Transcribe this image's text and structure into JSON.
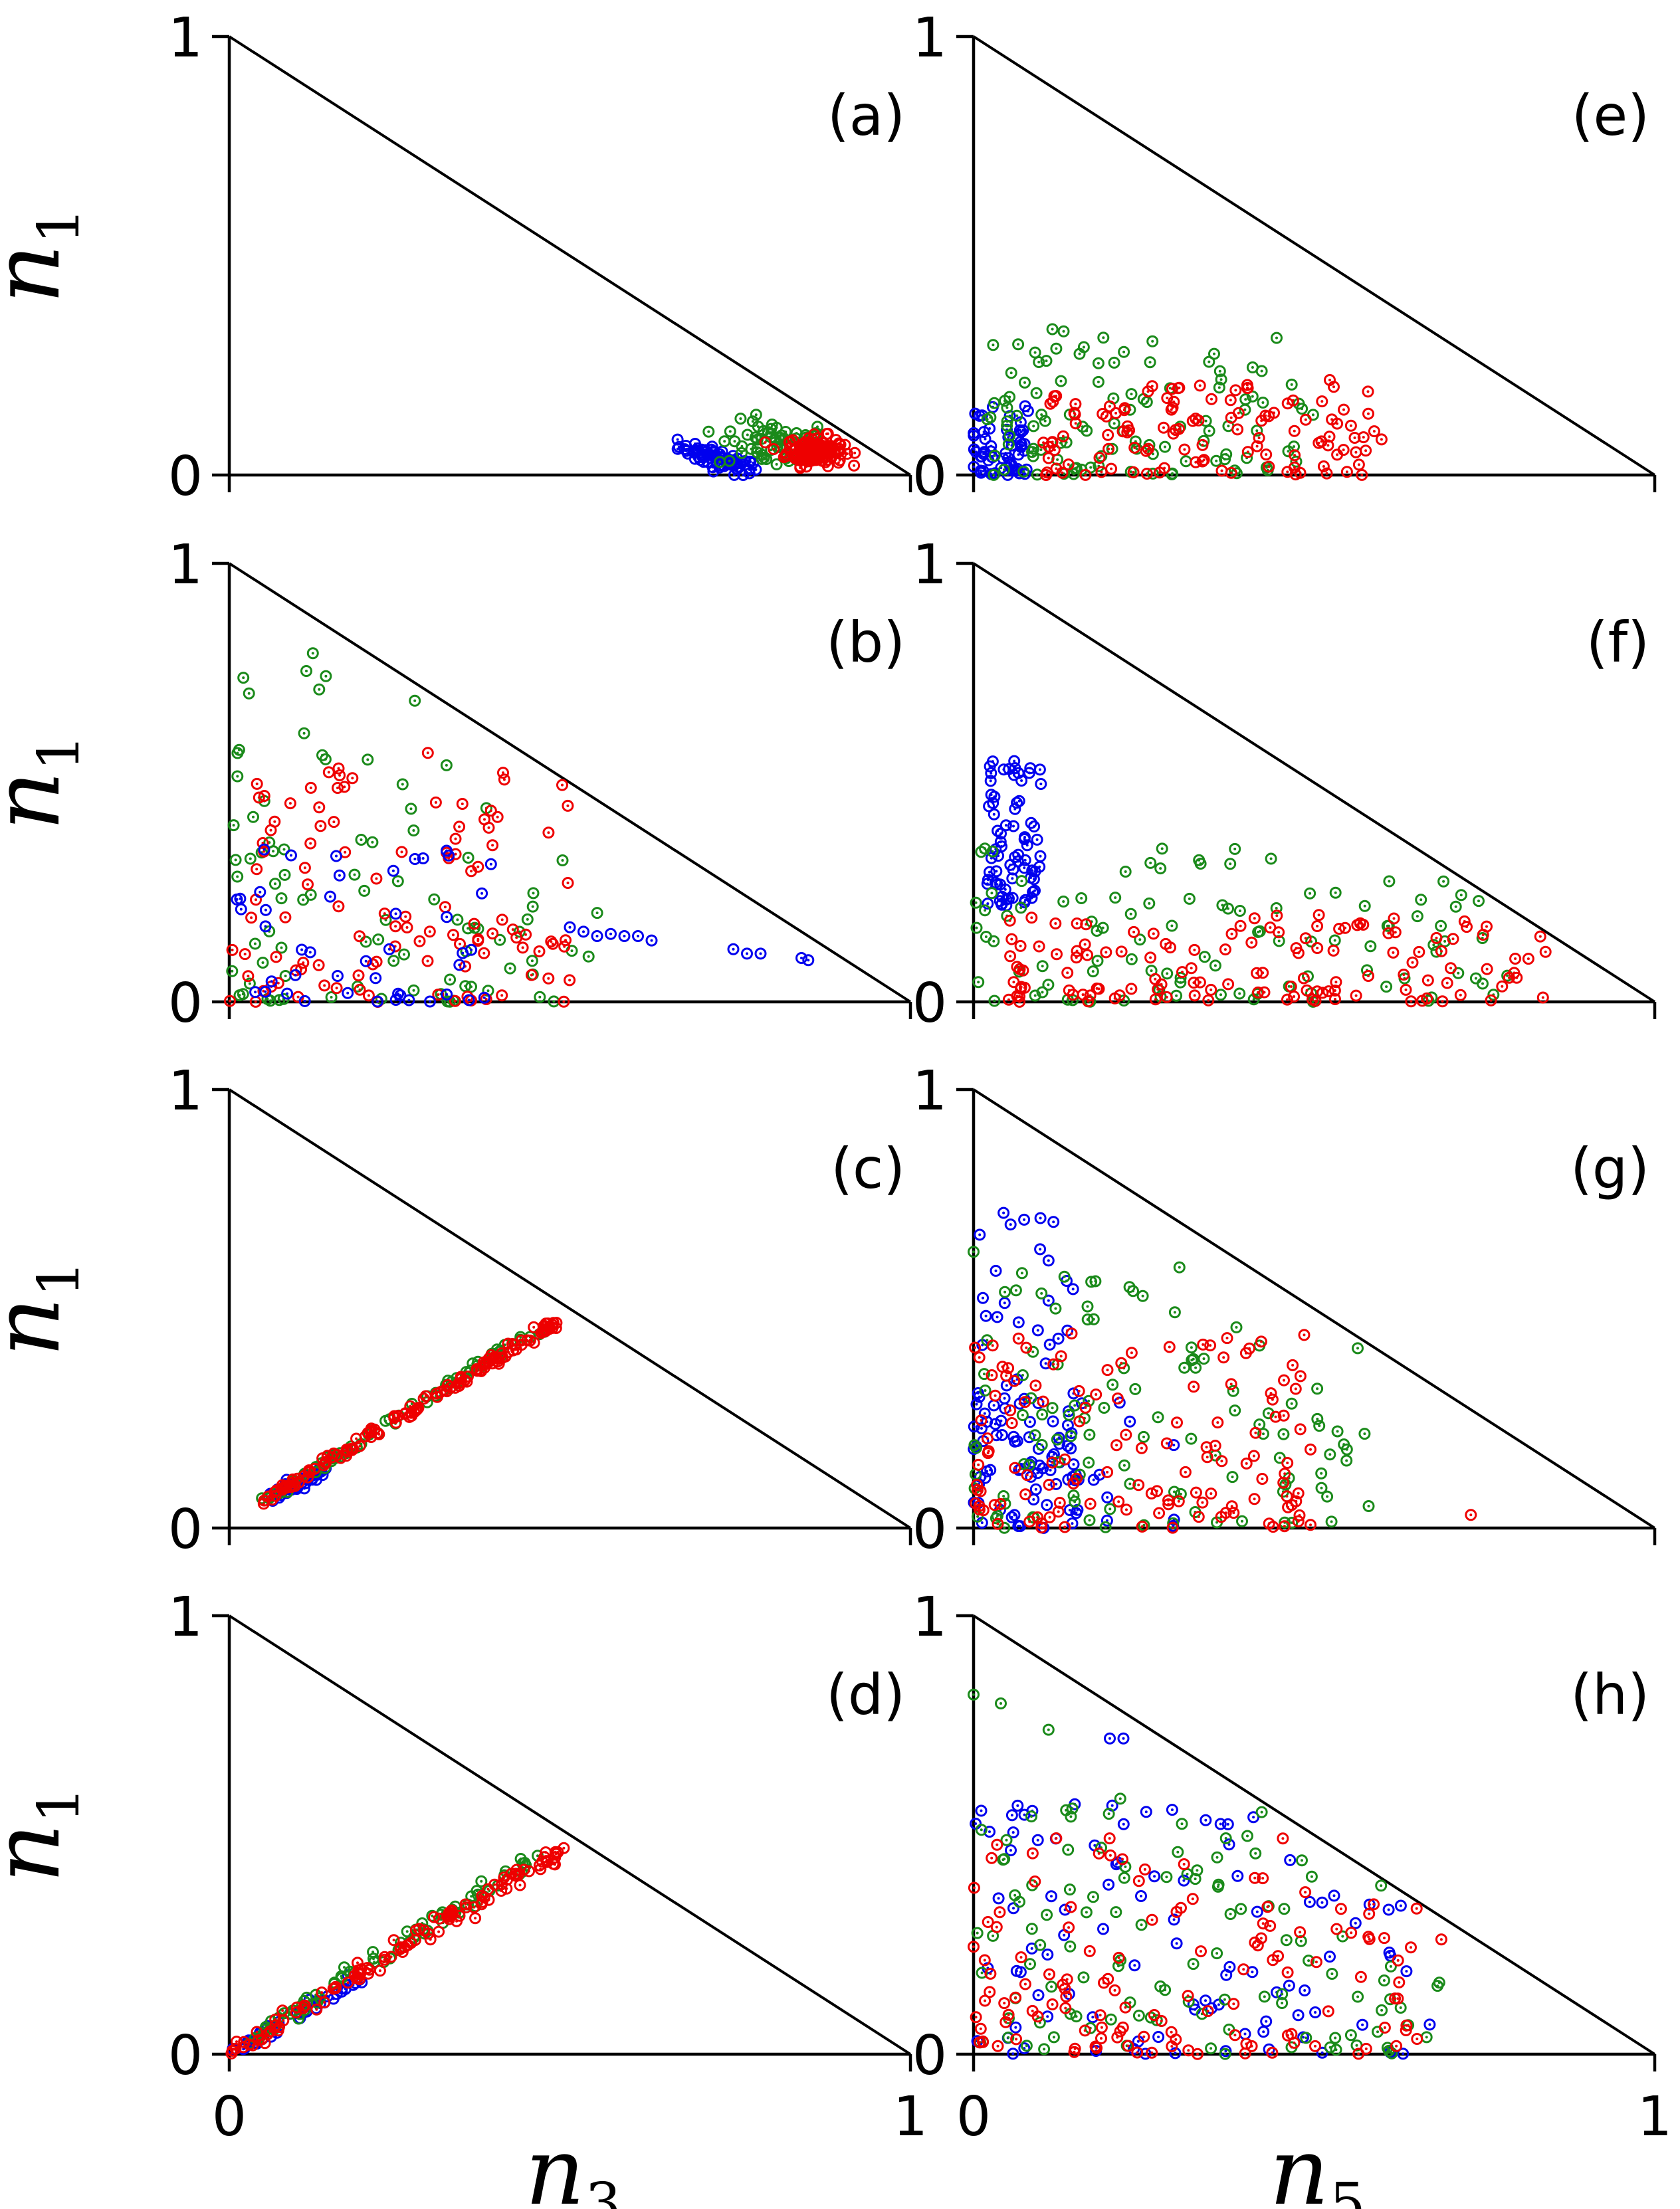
{
  "chart_data": {
    "type": "scatter",
    "description_series_colors": {
      "blue": "#0000ee",
      "green": "#1a8a1a",
      "red": "#ee0000"
    },
    "y_label": {
      "base": "n",
      "sub": "1"
    },
    "x_labels": [
      {
        "base": "n",
        "sub": "3"
      },
      {
        "base": "n",
        "sub": "5"
      }
    ],
    "x_ticks": [
      "0",
      "1"
    ],
    "y_ticks": [
      "0",
      "1"
    ],
    "xlim": [
      0,
      1
    ],
    "ylim": [
      0,
      1
    ],
    "panels": [
      {
        "label": "(a)",
        "column": 0,
        "row": 0,
        "style": "dense_cluster",
        "clusters": [
          {
            "color": "#0000ee",
            "center": [
              0.72,
              0.035
            ],
            "spread": [
              0.05,
              0.02
            ],
            "count": 70,
            "trend": [
              -0.5,
              0
            ]
          },
          {
            "color": "#1a8a1a",
            "center": [
              0.8,
              0.07
            ],
            "spread": [
              0.07,
              0.045
            ],
            "count": 70
          },
          {
            "color": "#ee0000",
            "center": [
              0.86,
              0.055
            ],
            "spread": [
              0.035,
              0.028
            ],
            "count": 140
          }
        ]
      },
      {
        "label": "(b)",
        "column": 0,
        "row": 1,
        "style": "scatter",
        "clusters": [
          {
            "color": "#1a8a1a",
            "region": [
              0.0,
              0.55,
              0.0,
              0.8
            ],
            "count": 90
          },
          {
            "color": "#ee0000",
            "region": [
              0.0,
              0.5,
              0.0,
              0.6
            ],
            "count": 110
          },
          {
            "color": "#0000ee",
            "region": [
              0.0,
              0.4,
              0.0,
              0.35
            ],
            "count": 45
          },
          {
            "color": "#0000ee",
            "points": [
              [
                0.5,
                0.17
              ],
              [
                0.52,
                0.16
              ],
              [
                0.54,
                0.15
              ],
              [
                0.56,
                0.155
              ],
              [
                0.58,
                0.15
              ],
              [
                0.6,
                0.15
              ],
              [
                0.62,
                0.14
              ],
              [
                0.74,
                0.12
              ],
              [
                0.76,
                0.11
              ],
              [
                0.78,
                0.11
              ],
              [
                0.84,
                0.1
              ],
              [
                0.85,
                0.095
              ]
            ]
          }
        ]
      },
      {
        "label": "(c)",
        "column": 0,
        "row": 2,
        "style": "line",
        "clusters": [
          {
            "color": "#0000ee",
            "from": [
              0.06,
              0.07
            ],
            "to": [
              0.14,
              0.13
            ],
            "count": 50,
            "jitter": 0.006
          },
          {
            "color": "#1a8a1a",
            "from": [
              0.05,
              0.06
            ],
            "to": [
              0.46,
              0.46
            ],
            "count": 70,
            "jitter": 0.005
          },
          {
            "color": "#ee0000",
            "from": [
              0.05,
              0.06
            ],
            "to": [
              0.48,
              0.47
            ],
            "count": 140,
            "jitter": 0.005
          }
        ]
      },
      {
        "label": "(d)",
        "column": 0,
        "row": 3,
        "style": "line",
        "clusters": [
          {
            "color": "#0000ee",
            "from": [
              0.0,
              0.0
            ],
            "to": [
              0.2,
              0.18
            ],
            "count": 45,
            "jitter": 0.007
          },
          {
            "color": "#1a8a1a",
            "from": [
              0.02,
              0.02
            ],
            "to": [
              0.45,
              0.45
            ],
            "count": 75,
            "jitter": 0.008
          },
          {
            "color": "#ee0000",
            "from": [
              0.0,
              0.0
            ],
            "to": [
              0.5,
              0.48
            ],
            "count": 120,
            "jitter": 0.008
          }
        ]
      },
      {
        "label": "(e)",
        "column": 1,
        "row": 0,
        "style": "scatter",
        "clusters": [
          {
            "color": "#0000ee",
            "region": [
              0.0,
              0.08,
              0.0,
              0.16
            ],
            "count": 60
          },
          {
            "color": "#1a8a1a",
            "region": [
              0.02,
              0.5,
              0.0,
              0.34
            ],
            "count": 110
          },
          {
            "color": "#ee0000",
            "region": [
              0.1,
              0.6,
              0.0,
              0.22
            ],
            "count": 120
          }
        ]
      },
      {
        "label": "(f)",
        "column": 1,
        "row": 1,
        "style": "scatter",
        "clusters": [
          {
            "color": "#0000ee",
            "region": [
              0.02,
              0.1,
              0.22,
              0.55
            ],
            "count": 75
          },
          {
            "color": "#1a8a1a",
            "region": [
              0.0,
              0.8,
              0.0,
              0.35
            ],
            "count": 100
          },
          {
            "color": "#ee0000",
            "region": [
              0.05,
              0.85,
              0.0,
              0.2
            ],
            "count": 130
          }
        ]
      },
      {
        "label": "(g)",
        "column": 1,
        "row": 2,
        "style": "scatter",
        "clusters": [
          {
            "color": "#0000ee",
            "region": [
              0.0,
              0.15,
              0.1,
              0.72
            ],
            "count": 60
          },
          {
            "color": "#0000ee",
            "region": [
              0.0,
              0.3,
              0.0,
              0.3
            ],
            "count": 50
          },
          {
            "color": "#1a8a1a",
            "region": [
              0.0,
              0.58,
              0.0,
              0.6
            ],
            "count": 110
          },
          {
            "color": "#ee0000",
            "region": [
              0.0,
              0.5,
              0.0,
              0.45
            ],
            "count": 130
          },
          {
            "color": "#ee0000",
            "points": [
              [
                0.73,
                0.03
              ]
            ]
          },
          {
            "color": "#1a8a1a",
            "points": [
              [
                0.58,
                0.05
              ],
              [
                0.0,
                0.63
              ]
            ]
          }
        ]
      },
      {
        "label": "(h)",
        "column": 1,
        "row": 3,
        "style": "scatter",
        "clusters": [
          {
            "color": "#0000ee",
            "region": [
              0.0,
              0.68,
              0.0,
              0.58
            ],
            "count": 95
          },
          {
            "color": "#1a8a1a",
            "region": [
              0.0,
              0.7,
              0.0,
              0.6
            ],
            "count": 110
          },
          {
            "color": "#ee0000",
            "region": [
              0.0,
              0.7,
              0.0,
              0.5
            ],
            "count": 130
          },
          {
            "color": "#1a8a1a",
            "points": [
              [
                0.0,
                0.82
              ],
              [
                0.04,
                0.8
              ],
              [
                0.11,
                0.74
              ]
            ]
          },
          {
            "color": "#0000ee",
            "points": [
              [
                0.2,
                0.72
              ],
              [
                0.22,
                0.72
              ]
            ]
          }
        ]
      }
    ]
  }
}
